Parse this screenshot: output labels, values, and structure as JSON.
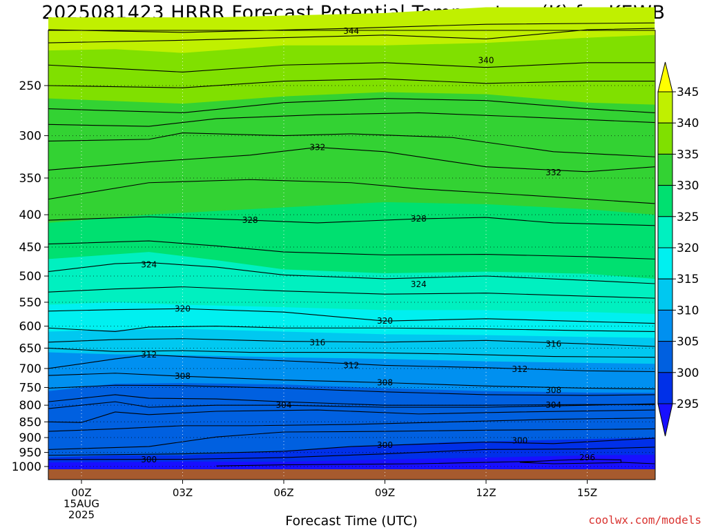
{
  "title": "2025081423 HRRR Forecast Potential Temperature (K) for KEWB",
  "watermark": "coolwx.com/models",
  "colors": {
    "t345": "#ffff00",
    "t340": "#c0f000",
    "t335": "#80e000",
    "t330": "#33d233",
    "t325": "#00e070",
    "t320": "#00f0c0",
    "t315": "#00f0f0",
    "t310": "#00c8f0",
    "t305": "#0090f0",
    "t300": "#0060e0",
    "t295": "#0030e8",
    "tlow": "#1810ff",
    "ground": "#a65a2e"
  },
  "chart_data": {
    "type": "heatmap",
    "title": "2025081423 HRRR Forecast Potential Temperature (K) for KEWB",
    "xlabel": "Forecast Time (UTC)",
    "ylabel": "",
    "x_ticks": [
      "00Z",
      "03Z",
      "06Z",
      "09Z",
      "12Z",
      "15Z"
    ],
    "x_first_tick_date": [
      "15AUG",
      "2025"
    ],
    "y_ticks": [
      250,
      300,
      350,
      400,
      450,
      500,
      550,
      600,
      650,
      700,
      750,
      800,
      850,
      900,
      950,
      1000
    ],
    "y_axis_reversed": true,
    "colorbar": {
      "labels": [
        345,
        340,
        335,
        330,
        325,
        320,
        315,
        310,
        305,
        300,
        295
      ],
      "extends": "both"
    },
    "contour_labels": [
      {
        "value": 344,
        "time": "08Z",
        "pressure": 205
      },
      {
        "value": 340,
        "time": "12Z",
        "pressure": 228
      },
      {
        "value": 332,
        "time": "07Z",
        "pressure": 313
      },
      {
        "value": 332,
        "time": "14Z",
        "pressure": 343
      },
      {
        "value": 328,
        "time": "05Z",
        "pressure": 408
      },
      {
        "value": 328,
        "time": "10Z",
        "pressure": 406
      },
      {
        "value": 324,
        "time": "02Z",
        "pressure": 480
      },
      {
        "value": 324,
        "time": "10Z",
        "pressure": 515
      },
      {
        "value": 320,
        "time": "03Z",
        "pressure": 563
      },
      {
        "value": 320,
        "time": "09Z",
        "pressure": 589
      },
      {
        "value": 316,
        "time": "07Z",
        "pressure": 637
      },
      {
        "value": 316,
        "time": "14Z",
        "pressure": 640
      },
      {
        "value": 312,
        "time": "02Z",
        "pressure": 666
      },
      {
        "value": 312,
        "time": "08Z",
        "pressure": 692
      },
      {
        "value": 312,
        "time": "13Z",
        "pressure": 702
      },
      {
        "value": 308,
        "time": "03Z",
        "pressure": 720
      },
      {
        "value": 308,
        "time": "09Z",
        "pressure": 737
      },
      {
        "value": 308,
        "time": "14Z",
        "pressure": 758
      },
      {
        "value": 304,
        "time": "06Z",
        "pressure": 800
      },
      {
        "value": 304,
        "time": "14Z",
        "pressure": 800
      },
      {
        "value": 300,
        "time": "09Z",
        "pressure": 925
      },
      {
        "value": 300,
        "time": "13Z",
        "pressure": 910
      },
      {
        "value": 300,
        "time": "02Z",
        "pressure": 975
      },
      {
        "value": 296,
        "time": "15Z",
        "pressure": 968
      }
    ]
  }
}
